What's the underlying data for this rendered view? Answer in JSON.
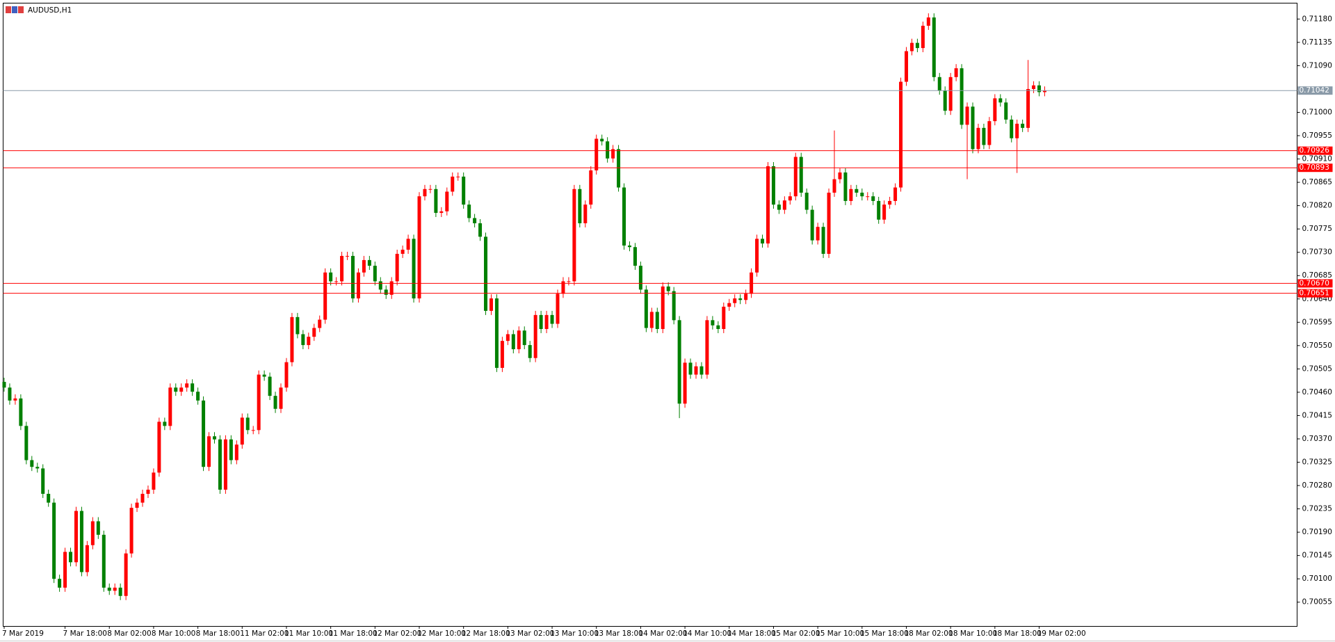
{
  "chart_data": {
    "type": "candlestick",
    "title": "AUDUSD,H1",
    "categories": [
      "7 Mar 2019",
      null,
      null,
      null,
      null,
      null,
      null,
      null,
      null,
      null,
      null,
      "7 Mar 18:00",
      null,
      null,
      null,
      null,
      null,
      null,
      null,
      "8 Mar 02:00",
      null,
      null,
      null,
      null,
      null,
      null,
      null,
      "8 Mar 10:00",
      null,
      null,
      null,
      null,
      null,
      null,
      null,
      "8 Mar 18:00",
      null,
      null,
      null,
      null,
      null,
      null,
      null,
      "11 Mar 02:00",
      null,
      null,
      null,
      null,
      null,
      null,
      null,
      "11 Mar 10:00",
      null,
      null,
      null,
      null,
      null,
      null,
      null,
      "11 Mar 18:00",
      null,
      null,
      null,
      null,
      null,
      null,
      null,
      "12 Mar 02:00",
      null,
      null,
      null,
      null,
      null,
      null,
      null,
      "12 Mar 10:00",
      null,
      null,
      null,
      null,
      null,
      null,
      null,
      "12 Mar 18:00",
      null,
      null,
      null,
      null,
      null,
      null,
      null,
      "13 Mar 02:00",
      null,
      null,
      null,
      null,
      null,
      null,
      null,
      "13 Mar 10:00",
      null,
      null,
      null,
      null,
      null,
      null,
      null,
      "13 Mar 18:00",
      null,
      null,
      null,
      null,
      null,
      null,
      null,
      "14 Mar 02:00",
      null,
      null,
      null,
      null,
      null,
      null,
      null,
      "14 Mar 10:00",
      null,
      null,
      null,
      null,
      null,
      null,
      null,
      "14 Mar 18:00",
      null,
      null,
      null,
      null,
      null,
      null,
      null,
      "15 Mar 02:00",
      null,
      null,
      null,
      null,
      null,
      null,
      null,
      "15 Mar 10:00",
      null,
      null,
      null,
      null,
      null,
      null,
      null,
      "15 Mar 18:00",
      null,
      null,
      null,
      null,
      null,
      null,
      null,
      "18 Mar 02:00",
      null,
      null,
      null,
      null,
      null,
      null,
      null,
      "18 Mar 10:00",
      null,
      null,
      null,
      null,
      null,
      null,
      null,
      "18 Mar 18:00",
      null,
      null,
      null,
      null,
      null,
      null,
      null,
      "19 Mar 02:00",
      null
    ],
    "open": [
      0.7048,
      0.70469,
      0.70444,
      0.70448,
      0.70395,
      0.70329,
      0.70316,
      0.70313,
      0.70264,
      0.70247,
      0.701,
      0.70083,
      0.70152,
      0.70132,
      0.70231,
      0.70113,
      0.70165,
      0.70211,
      0.70185,
      0.70083,
      0.70077,
      0.70083,
      0.70067,
      0.70149,
      0.70237,
      0.70247,
      0.70264,
      0.70272,
      0.70305,
      0.70403,
      0.70395,
      0.70469,
      0.70461,
      0.70469,
      0.70477,
      0.70461,
      0.70444,
      0.70316,
      0.70375,
      0.70369,
      0.70272,
      0.70369,
      0.70329,
      0.70359,
      0.70411,
      0.70387,
      0.70387,
      0.70494,
      0.7049,
      0.70453,
      0.70428,
      0.70469,
      0.70518,
      0.70605,
      0.70572,
      0.70551,
      0.70567,
      0.70584,
      0.706,
      0.70691,
      0.70674,
      0.70674,
      0.70723,
      0.70723,
      0.70641,
      0.70691,
      0.70715,
      0.70704,
      0.70674,
      0.70658,
      0.70648,
      0.70674,
      0.70727,
      0.70735,
      0.70756,
      0.70641,
      0.70838,
      0.70852,
      0.70852,
      0.70806,
      0.70809,
      0.70847,
      0.70876,
      0.70876,
      0.70822,
      0.70796,
      0.70786,
      0.7076,
      0.70617,
      0.70641,
      0.70507,
      0.70559,
      0.70572,
      0.70543,
      0.70579,
      0.70551,
      0.70526,
      0.70609,
      0.70582,
      0.70609,
      0.70592,
      0.7065,
      0.70674,
      0.70674,
      0.70852,
      0.70786,
      0.70822,
      0.70888,
      0.70949,
      0.70944,
      0.70911,
      0.70929,
      0.70855,
      0.70743,
      0.7074,
      0.70704,
      0.70658,
      0.70584,
      0.70615,
      0.70582,
      0.70664,
      0.70655,
      0.70599,
      0.70438,
      0.70517,
      0.70494,
      0.7051,
      0.70494,
      0.70599,
      0.70589,
      0.70582,
      0.70625,
      0.70632,
      0.70641,
      0.70638,
      0.7065,
      0.70691,
      0.70756,
      0.70747,
      0.70896,
      0.70822,
      0.70812,
      0.7083,
      0.70838,
      0.70914,
      0.70845,
      0.70812,
      0.70753,
      0.70779,
      0.70727,
      0.70845,
      0.70871,
      0.70884,
      0.70829,
      0.70852,
      0.70845,
      0.70838,
      0.70838,
      0.70829,
      0.70793,
      0.70822,
      0.70829,
      0.70855,
      0.71059,
      0.71118,
      0.71134,
      0.71124,
      0.71167,
      0.71183,
      0.71068,
      0.71042,
      0.71003,
      0.71068,
      0.71085,
      0.70976,
      0.71011,
      0.70929,
      0.7097,
      0.70937,
      0.70983,
      0.71027,
      0.71019,
      0.70986,
      0.7095,
      0.70978,
      0.7097,
      0.71045,
      0.71052,
      0.71039
    ],
    "high": [
      0.70488,
      0.70477,
      0.70456,
      0.70456,
      0.70403,
      0.70337,
      0.70324,
      0.70321,
      0.70272,
      0.70255,
      0.70108,
      0.7016,
      0.7016,
      0.70239,
      0.70239,
      0.70173,
      0.70219,
      0.70219,
      0.70193,
      0.70091,
      0.70091,
      0.70091,
      0.70157,
      0.70245,
      0.70255,
      0.70272,
      0.7028,
      0.70313,
      0.70411,
      0.70411,
      0.70477,
      0.70477,
      0.70477,
      0.70485,
      0.70485,
      0.70469,
      0.70452,
      0.70383,
      0.70383,
      0.70377,
      0.70377,
      0.70377,
      0.70367,
      0.70419,
      0.70419,
      0.70395,
      0.70502,
      0.70502,
      0.70498,
      0.70461,
      0.70477,
      0.70526,
      0.70613,
      0.70613,
      0.7058,
      0.70575,
      0.70592,
      0.70608,
      0.70699,
      0.70699,
      0.70682,
      0.70731,
      0.70731,
      0.70731,
      0.70699,
      0.70723,
      0.70723,
      0.70712,
      0.70682,
      0.70666,
      0.70682,
      0.70735,
      0.70743,
      0.70764,
      0.70764,
      0.70846,
      0.7086,
      0.7086,
      0.7086,
      0.70817,
      0.70855,
      0.70884,
      0.70884,
      0.70884,
      0.7083,
      0.70804,
      0.70794,
      0.70768,
      0.70649,
      0.70649,
      0.70567,
      0.7058,
      0.7058,
      0.70587,
      0.70587,
      0.70559,
      0.70617,
      0.70617,
      0.70617,
      0.70617,
      0.70658,
      0.70682,
      0.70682,
      0.7086,
      0.7086,
      0.7083,
      0.70896,
      0.70957,
      0.70957,
      0.70952,
      0.70937,
      0.70937,
      0.70863,
      0.70751,
      0.70748,
      0.70712,
      0.70666,
      0.70623,
      0.70623,
      0.70672,
      0.70672,
      0.70663,
      0.70607,
      0.70525,
      0.70525,
      0.70518,
      0.70518,
      0.70607,
      0.70607,
      0.70597,
      0.70633,
      0.7064,
      0.70649,
      0.70649,
      0.70658,
      0.70699,
      0.70764,
      0.70764,
      0.70904,
      0.70904,
      0.7083,
      0.70838,
      0.70846,
      0.70922,
      0.70922,
      0.70853,
      0.7082,
      0.70787,
      0.70787,
      0.70853,
      0.70965,
      0.70892,
      0.70892,
      0.7086,
      0.7086,
      0.70853,
      0.70846,
      0.70846,
      0.70837,
      0.7083,
      0.70837,
      0.70863,
      0.71067,
      0.71126,
      0.71142,
      0.71142,
      0.71175,
      0.71191,
      0.71191,
      0.71076,
      0.7105,
      0.71076,
      0.71093,
      0.71093,
      0.71019,
      0.71019,
      0.70978,
      0.70978,
      0.70991,
      0.71035,
      0.71035,
      0.71027,
      0.70994,
      0.70986,
      0.70986,
      0.71101,
      0.7106,
      0.7106,
      0.7105
    ],
    "low": [
      0.70461,
      0.70436,
      0.70436,
      0.70387,
      0.70321,
      0.70308,
      0.70305,
      0.70256,
      0.70239,
      0.70092,
      0.70075,
      0.70075,
      0.70124,
      0.70124,
      0.70105,
      0.70105,
      0.70157,
      0.70177,
      0.70075,
      0.70069,
      0.70069,
      0.70059,
      0.70059,
      0.70141,
      0.70229,
      0.70239,
      0.70256,
      0.70264,
      0.70297,
      0.70387,
      0.70387,
      0.70453,
      0.70453,
      0.70461,
      0.70453,
      0.70436,
      0.70308,
      0.70308,
      0.70361,
      0.70264,
      0.70264,
      0.70321,
      0.70321,
      0.70351,
      0.70379,
      0.70379,
      0.70379,
      0.70482,
      0.70445,
      0.7042,
      0.7042,
      0.70461,
      0.7051,
      0.70564,
      0.70543,
      0.70543,
      0.70559,
      0.70576,
      0.70592,
      0.70666,
      0.70666,
      0.70666,
      0.70715,
      0.70633,
      0.70633,
      0.70683,
      0.70696,
      0.70666,
      0.7065,
      0.7064,
      0.7064,
      0.70666,
      0.70719,
      0.70727,
      0.70633,
      0.70633,
      0.7083,
      0.70844,
      0.70798,
      0.70798,
      0.70801,
      0.70839,
      0.70868,
      0.70814,
      0.70788,
      0.70778,
      0.70752,
      0.70609,
      0.70609,
      0.70499,
      0.70499,
      0.70551,
      0.70535,
      0.70535,
      0.70543,
      0.70518,
      0.70518,
      0.70574,
      0.70574,
      0.70584,
      0.70584,
      0.70642,
      0.70666,
      0.70666,
      0.70778,
      0.70778,
      0.70814,
      0.7088,
      0.70936,
      0.70903,
      0.70903,
      0.70847,
      0.70735,
      0.70732,
      0.70696,
      0.7065,
      0.70576,
      0.70576,
      0.70574,
      0.70574,
      0.70647,
      0.70591,
      0.7041,
      0.7043,
      0.70486,
      0.70486,
      0.70486,
      0.70486,
      0.70581,
      0.70574,
      0.70574,
      0.70617,
      0.70624,
      0.7063,
      0.7063,
      0.70642,
      0.70683,
      0.70739,
      0.70739,
      0.70814,
      0.70804,
      0.70804,
      0.70822,
      0.7083,
      0.70837,
      0.70804,
      0.70745,
      0.70745,
      0.70719,
      0.70719,
      0.70837,
      0.70863,
      0.70821,
      0.70821,
      0.70837,
      0.7083,
      0.7083,
      0.70821,
      0.70785,
      0.70785,
      0.70814,
      0.70821,
      0.70847,
      0.71051,
      0.7111,
      0.71116,
      0.71116,
      0.71159,
      0.7106,
      0.71034,
      0.70995,
      0.70995,
      0.7106,
      0.70968,
      0.70871,
      0.70921,
      0.70921,
      0.70929,
      0.70929,
      0.70975,
      0.71011,
      0.70978,
      0.70942,
      0.70883,
      0.70962,
      0.70962,
      0.71037,
      0.71031,
      0.71031
    ],
    "close": [
      0.70469,
      0.70444,
      0.70448,
      0.70395,
      0.70329,
      0.70316,
      0.70313,
      0.70264,
      0.70247,
      0.701,
      0.70083,
      0.70152,
      0.70132,
      0.70231,
      0.70113,
      0.70165,
      0.70211,
      0.70185,
      0.70083,
      0.70077,
      0.70083,
      0.70067,
      0.70149,
      0.70237,
      0.70247,
      0.70264,
      0.70272,
      0.70305,
      0.70403,
      0.70395,
      0.70469,
      0.70461,
      0.70469,
      0.70477,
      0.70461,
      0.70444,
      0.70316,
      0.70375,
      0.70369,
      0.70272,
      0.70369,
      0.70329,
      0.70359,
      0.70411,
      0.70387,
      0.70387,
      0.70494,
      0.7049,
      0.70453,
      0.70428,
      0.70469,
      0.70518,
      0.70605,
      0.70572,
      0.70551,
      0.70567,
      0.70584,
      0.706,
      0.70691,
      0.70674,
      0.70674,
      0.70723,
      0.70723,
      0.70641,
      0.70691,
      0.70715,
      0.70704,
      0.70674,
      0.70658,
      0.70648,
      0.70674,
      0.70727,
      0.70735,
      0.70756,
      0.70641,
      0.70838,
      0.70852,
      0.70852,
      0.70806,
      0.70809,
      0.70847,
      0.70876,
      0.70876,
      0.70822,
      0.70796,
      0.70786,
      0.7076,
      0.70617,
      0.70641,
      0.70507,
      0.70559,
      0.70572,
      0.70543,
      0.70579,
      0.70551,
      0.70526,
      0.70609,
      0.70582,
      0.70609,
      0.70592,
      0.7065,
      0.70674,
      0.70674,
      0.70852,
      0.70786,
      0.70822,
      0.70888,
      0.70949,
      0.70944,
      0.70911,
      0.70929,
      0.70855,
      0.70743,
      0.7074,
      0.70704,
      0.70658,
      0.70584,
      0.70615,
      0.70582,
      0.70664,
      0.70655,
      0.70599,
      0.70438,
      0.70517,
      0.70494,
      0.7051,
      0.70494,
      0.70599,
      0.70589,
      0.70582,
      0.70625,
      0.70632,
      0.70641,
      0.70638,
      0.7065,
      0.70691,
      0.70756,
      0.70747,
      0.70896,
      0.70822,
      0.70812,
      0.7083,
      0.70838,
      0.70914,
      0.70845,
      0.70812,
      0.70753,
      0.70779,
      0.70727,
      0.70845,
      0.70871,
      0.70884,
      0.70829,
      0.70852,
      0.70845,
      0.70838,
      0.70838,
      0.70829,
      0.70793,
      0.70822,
      0.70829,
      0.70855,
      0.71059,
      0.71118,
      0.71134,
      0.71124,
      0.71167,
      0.71183,
      0.71068,
      0.71042,
      0.71003,
      0.71068,
      0.71085,
      0.70976,
      0.71011,
      0.70929,
      0.7097,
      0.70937,
      0.70983,
      0.71027,
      0.71019,
      0.70986,
      0.7095,
      0.70978,
      0.7097,
      0.71045,
      0.71052,
      0.71039,
      0.71042
    ],
    "up_color": "#ff0000",
    "down_color": "#008000",
    "ylim": [
      0.70009,
      0.7121
    ],
    "yticks": [
      {
        "value": 0.7118,
        "label": "0.71180"
      },
      0.71135,
      {
        "value": 0.7109,
        "label": "0.71090"
      },
      {
        "value": 0.71,
        "label": "0.71000"
      },
      0.70955,
      {
        "value": 0.7091,
        "label": "0.70910"
      },
      0.70865,
      {
        "value": 0.7082,
        "label": "0.70820"
      },
      0.70775,
      {
        "value": 0.7073,
        "label": "0.70730"
      },
      0.70685,
      {
        "value": 0.7064,
        "label": "0.70640"
      },
      0.70595,
      {
        "value": 0.7055,
        "label": "0.70550"
      },
      0.70505,
      {
        "value": 0.7046,
        "label": "0.70460"
      },
      0.70415,
      {
        "value": 0.7037,
        "label": "0.70370"
      },
      0.70325,
      {
        "value": 0.7028,
        "label": "0.70280"
      },
      0.70235,
      {
        "value": 0.7019,
        "label": "0.70190"
      },
      0.70145,
      {
        "value": 0.701,
        "label": "0.70100"
      },
      0.70055
    ],
    "hlines": [
      {
        "value": 0.71042,
        "label": "0.71042",
        "color": "#8a9aa8"
      },
      {
        "value": 0.70926,
        "label": "0.70926",
        "color": "#ff0000"
      },
      {
        "value": 0.70893,
        "label": "0.70893",
        "color": "#ff0000"
      },
      {
        "value": 0.7067,
        "label": "0.70670",
        "color": "#ff0000"
      },
      {
        "value": 0.70651,
        "label": "0.70651",
        "color": "#ff0000"
      }
    ]
  }
}
